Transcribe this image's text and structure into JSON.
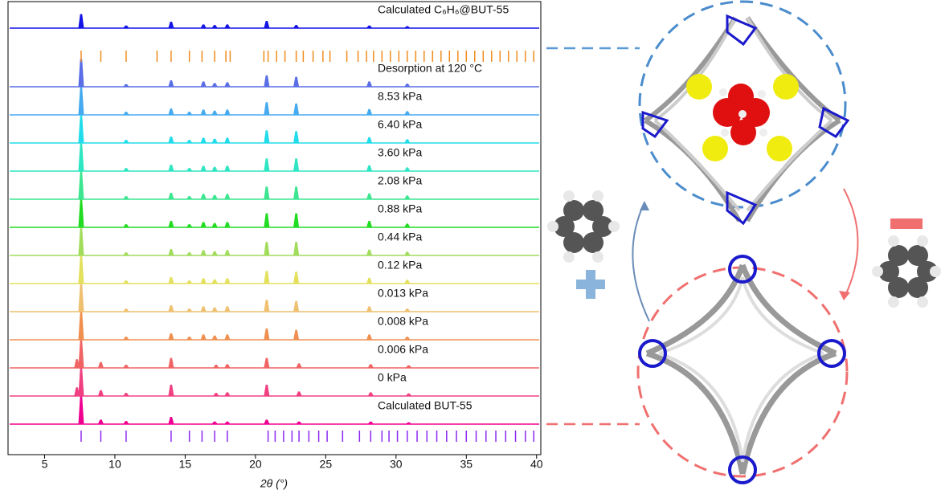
{
  "chart_data": {
    "type": "line",
    "x_label": "2θ (°)",
    "xlim": [
      2.4,
      40.3
    ],
    "xticks": [
      5,
      10,
      15,
      20,
      25,
      30,
      35,
      40
    ],
    "series": [
      {
        "name": "Calculated C₆H₆@BUT-55",
        "color": "#1414e6",
        "x": [
          7.6,
          10.8,
          14.0,
          16.3,
          17.1,
          18.0,
          20.8,
          22.9,
          28.1,
          30.8
        ],
        "values": [
          50,
          8,
          22,
          12,
          10,
          12,
          25,
          10,
          8,
          6
        ]
      },
      {
        "name": "Desorption at 120 °C",
        "color": "#5a6ee6",
        "x": [
          7.6,
          10.8,
          14.0,
          16.3,
          17.1,
          18.0,
          20.8,
          22.9,
          28.1,
          30.8
        ],
        "values": [
          100,
          8,
          22,
          18,
          12,
          15,
          40,
          35,
          18,
          10
        ]
      },
      {
        "name": "8.53 kPa",
        "color": "#46aaf0",
        "x": [
          7.6,
          10.8,
          14.0,
          15.3,
          16.3,
          17.1,
          18.0,
          20.8,
          22.9,
          28.1,
          30.8
        ],
        "values": [
          100,
          10,
          22,
          10,
          18,
          14,
          18,
          45,
          40,
          20,
          12
        ]
      },
      {
        "name": "6.40 kPa",
        "color": "#22dcec",
        "x": [
          7.6,
          10.8,
          14.0,
          15.3,
          16.3,
          17.1,
          18.0,
          20.8,
          22.9,
          28.1,
          30.8
        ],
        "values": [
          100,
          10,
          22,
          10,
          18,
          14,
          18,
          45,
          42,
          20,
          12
        ]
      },
      {
        "name": "3.60 kPa",
        "color": "#2ee6c2",
        "x": [
          7.6,
          10.8,
          14.0,
          15.3,
          16.3,
          17.1,
          18.0,
          20.8,
          22.9,
          28.1,
          30.8
        ],
        "values": [
          100,
          10,
          22,
          10,
          18,
          14,
          18,
          45,
          45,
          20,
          12
        ]
      },
      {
        "name": "2.08 kPa",
        "color": "#3ce690",
        "x": [
          7.6,
          10.8,
          14.0,
          15.3,
          16.3,
          17.1,
          18.0,
          20.8,
          22.9,
          28.1,
          30.8
        ],
        "values": [
          100,
          10,
          22,
          10,
          18,
          14,
          18,
          45,
          45,
          20,
          12
        ]
      },
      {
        "name": "0.88 kPa",
        "color": "#22dc22",
        "x": [
          7.6,
          10.8,
          14.0,
          15.3,
          16.3,
          17.1,
          18.0,
          20.8,
          22.9,
          28.1,
          30.8
        ],
        "values": [
          100,
          10,
          22,
          10,
          18,
          14,
          18,
          50,
          50,
          22,
          12
        ]
      },
      {
        "name": "0.44 kPa",
        "color": "#a2dc5c",
        "x": [
          7.6,
          10.8,
          14.0,
          15.3,
          16.3,
          17.1,
          18.0,
          20.8,
          22.9,
          28.1,
          30.8
        ],
        "values": [
          100,
          10,
          22,
          10,
          18,
          14,
          18,
          48,
          48,
          20,
          12
        ]
      },
      {
        "name": "0.12 kPa",
        "color": "#e2e05c",
        "x": [
          7.6,
          10.8,
          14.0,
          15.3,
          16.3,
          17.1,
          18.0,
          20.8,
          22.9,
          28.1,
          30.8
        ],
        "values": [
          100,
          10,
          22,
          10,
          18,
          14,
          18,
          45,
          42,
          20,
          12
        ]
      },
      {
        "name": "0.013 kPa",
        "color": "#eec070",
        "x": [
          7.6,
          10.8,
          14.0,
          15.3,
          16.3,
          17.1,
          18.0,
          20.8,
          22.9,
          28.1,
          30.8
        ],
        "values": [
          100,
          10,
          22,
          10,
          18,
          14,
          18,
          42,
          38,
          18,
          10
        ]
      },
      {
        "name": "0.008 kPa",
        "color": "#f09050",
        "x": [
          7.6,
          10.8,
          14.0,
          15.3,
          16.3,
          17.1,
          18.0,
          20.8,
          22.9,
          28.1,
          30.8
        ],
        "values": [
          100,
          10,
          22,
          10,
          18,
          14,
          18,
          40,
          35,
          18,
          10
        ]
      },
      {
        "name": "0.006 kPa",
        "color": "#f06464",
        "x": [
          7.3,
          7.6,
          9.0,
          10.8,
          14.0,
          17.2,
          18.0,
          20.8,
          23.1,
          28.2,
          30.9
        ],
        "values": [
          30,
          100,
          20,
          10,
          35,
          10,
          12,
          35,
          15,
          12,
          8
        ]
      },
      {
        "name": "0 kPa",
        "color": "#f04082",
        "x": [
          7.3,
          7.6,
          9.0,
          10.8,
          14.0,
          17.2,
          18.0,
          20.8,
          23.1,
          28.2,
          30.9
        ],
        "values": [
          30,
          100,
          20,
          10,
          40,
          10,
          12,
          40,
          15,
          12,
          8
        ]
      },
      {
        "name": "Calculated BUT-55",
        "color": "#f00090",
        "x": [
          7.6,
          9.0,
          10.8,
          14.0,
          17.1,
          18.0,
          20.8,
          23.1,
          28.2,
          30.9
        ],
        "values": [
          100,
          15,
          10,
          25,
          8,
          8,
          15,
          8,
          8,
          5
        ]
      }
    ],
    "reflections": [
      {
        "color": "#f08c1e",
        "x": [
          7.6,
          9.0,
          10.8,
          13.0,
          14.0,
          15.3,
          16.2,
          17.1,
          17.9,
          18.2,
          20.6,
          20.9,
          21.5,
          22.1,
          22.9,
          23.4,
          24.1,
          24.8,
          25.3,
          26.5,
          27.3,
          27.9,
          28.4,
          29.0,
          29.6,
          30.2,
          30.8,
          31.4,
          32.0,
          32.6,
          33.2,
          33.8,
          34.4,
          35.0,
          35.6,
          36.2,
          36.8,
          37.4,
          38.0,
          38.6,
          39.2,
          39.8
        ]
      },
      {
        "color": "#8c28f0",
        "x": [
          7.6,
          9.0,
          10.8,
          14.0,
          15.3,
          16.2,
          17.1,
          18.0,
          20.9,
          21.4,
          22.0,
          22.6,
          23.1,
          23.8,
          24.5,
          25.1,
          26.2,
          27.4,
          28.2,
          29.0,
          29.5,
          30.1,
          30.8,
          31.5,
          32.2,
          32.9,
          33.6,
          34.3,
          35.0,
          35.7,
          36.4,
          37.1,
          37.8,
          38.5,
          39.2,
          39.8
        ]
      }
    ]
  }
}
